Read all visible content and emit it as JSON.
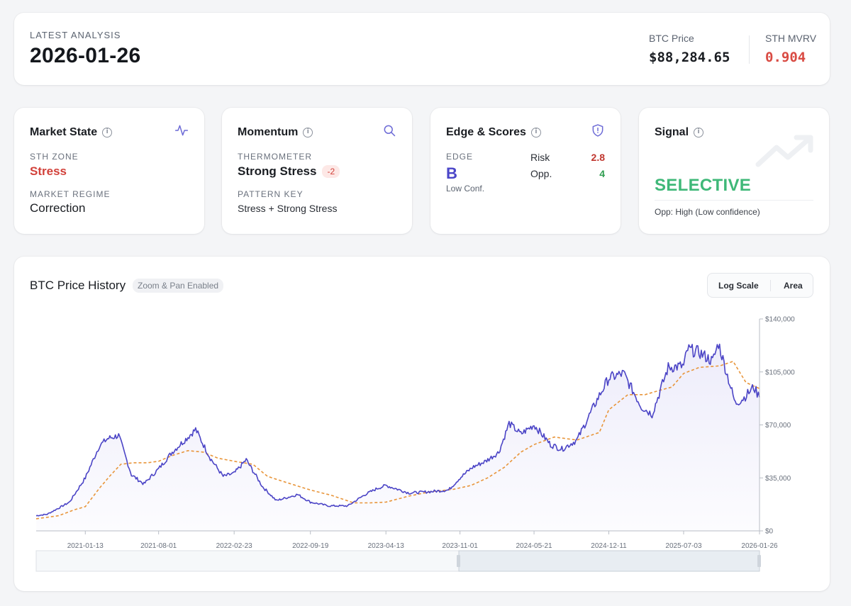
{
  "header": {
    "eyebrow": "LATEST ANALYSIS",
    "date": "2026-01-26",
    "btc_price_label": "BTC Price",
    "btc_price_value": "$88,284.65",
    "mvrv_label": "STH MVRV",
    "mvrv_value": "0.904"
  },
  "market_state": {
    "title": "Market State",
    "zone_label": "STH ZONE",
    "zone_value": "Stress",
    "regime_label": "MARKET REGIME",
    "regime_value": "Correction",
    "icon": "activity-icon"
  },
  "momentum": {
    "title": "Momentum",
    "thermo_label": "THERMOMETER",
    "thermo_value": "Strong Stress",
    "thermo_badge": "-2",
    "pattern_label": "PATTERN KEY",
    "pattern_value": "Stress + Strong Stress",
    "icon": "search-icon"
  },
  "edge": {
    "title": "Edge & Scores",
    "edge_label": "EDGE",
    "edge_grade": "B",
    "edge_conf": "Low Conf.",
    "risk_label": "Risk",
    "risk_value": "2.8",
    "opp_label": "Opp.",
    "opp_value": "4",
    "icon": "shield-icon"
  },
  "signal": {
    "title": "Signal",
    "value": "SELECTIVE",
    "note": "Opp: High (Low confidence)",
    "icon": "trending-up-icon"
  },
  "chart": {
    "title": "BTC Price History",
    "zoom_badge": "Zoom & Pan Enabled",
    "log_scale_label": "Log Scale",
    "area_label": "Area"
  },
  "colors": {
    "price_line": "#4b44c6",
    "ma_line": "#e8953a",
    "stress": "#d2413a",
    "selective": "#3fb878"
  },
  "chart_data": {
    "type": "line",
    "x_ticks": [
      "2021-01-13",
      "2021-08-01",
      "2022-02-23",
      "2022-09-19",
      "2023-04-13",
      "2023-11-01",
      "2024-05-21",
      "2024-12-11",
      "2025-07-03",
      "2026-01-26"
    ],
    "y_ticks": [
      "$0",
      "$35,000",
      "$70,000",
      "$105,000",
      "$140,000"
    ],
    "ylim": [
      0,
      140000
    ],
    "y_axis_position": "right",
    "grid": false,
    "series": [
      {
        "role": "price",
        "style": "solid",
        "x": [
          "2020-09-01",
          "2020-10-01",
          "2020-11-01",
          "2020-12-01",
          "2021-01-13",
          "2021-02-20",
          "2021-03-15",
          "2021-04-14",
          "2021-05-19",
          "2021-06-22",
          "2021-08-01",
          "2021-09-07",
          "2021-10-20",
          "2021-11-10",
          "2021-12-20",
          "2022-01-24",
          "2022-02-23",
          "2022-03-28",
          "2022-05-12",
          "2022-06-18",
          "2022-08-15",
          "2022-09-19",
          "2022-11-09",
          "2022-12-30",
          "2023-02-15",
          "2023-03-20",
          "2023-04-13",
          "2023-06-15",
          "2023-08-17",
          "2023-10-01",
          "2023-11-01",
          "2023-12-05",
          "2024-01-10",
          "2024-02-15",
          "2024-03-14",
          "2024-04-15",
          "2024-05-21",
          "2024-07-05",
          "2024-08-05",
          "2024-09-15",
          "2024-11-12",
          "2024-12-11",
          "2025-01-20",
          "2025-03-10",
          "2025-04-08",
          "2025-05-22",
          "2025-07-03",
          "2025-07-14",
          "2025-08-14",
          "2025-09-20",
          "2025-10-06",
          "2025-11-21",
          "2025-12-15",
          "2026-01-10",
          "2026-01-26"
        ],
        "y": [
          10000,
          11000,
          15000,
          19000,
          35000,
          56000,
          61000,
          63000,
          37000,
          31000,
          41000,
          52000,
          62000,
          67000,
          48000,
          36000,
          38000,
          47000,
          29000,
          20000,
          24000,
          19000,
          16500,
          16500,
          24000,
          28000,
          30000,
          25000,
          26000,
          27000,
          35000,
          42000,
          46000,
          52000,
          71000,
          64000,
          70000,
          57000,
          54000,
          60000,
          88000,
          101000,
          104000,
          82000,
          77000,
          108000,
          109000,
          120000,
          118000,
          112000,
          124000,
          84000,
          88000,
          95000,
          88284.65
        ]
      },
      {
        "role": "moving-average",
        "style": "dashed",
        "x": [
          "2020-09-01",
          "2020-11-01",
          "2020-12-15",
          "2021-01-13",
          "2021-02-20",
          "2021-03-20",
          "2021-04-20",
          "2021-05-25",
          "2021-07-01",
          "2021-08-01",
          "2021-09-10",
          "2021-10-20",
          "2021-12-01",
          "2022-01-10",
          "2022-02-23",
          "2022-04-15",
          "2022-05-25",
          "2022-07-15",
          "2022-09-19",
          "2022-11-15",
          "2023-01-15",
          "2023-03-01",
          "2023-04-13",
          "2023-06-15",
          "2023-08-15",
          "2023-10-15",
          "2023-12-01",
          "2024-01-15",
          "2024-03-01",
          "2024-04-15",
          "2024-05-21",
          "2024-07-15",
          "2024-09-15",
          "2024-11-15",
          "2024-12-11",
          "2025-02-01",
          "2025-03-20",
          "2025-05-01",
          "2025-06-01",
          "2025-07-03",
          "2025-08-15",
          "2025-10-10",
          "2025-11-15",
          "2025-12-20",
          "2026-01-26"
        ],
        "y": [
          8000,
          10000,
          14000,
          16000,
          28000,
          36000,
          44000,
          45000,
          45000,
          46000,
          50000,
          53000,
          52000,
          48000,
          46000,
          44000,
          36000,
          32000,
          27000,
          23500,
          18500,
          18500,
          19000,
          23000,
          26000,
          27500,
          30000,
          35000,
          42000,
          52000,
          57000,
          62000,
          60000,
          65000,
          80000,
          90000,
          90000,
          93000,
          95000,
          104000,
          108000,
          109000,
          112000,
          98000,
          94000
        ]
      }
    ]
  }
}
